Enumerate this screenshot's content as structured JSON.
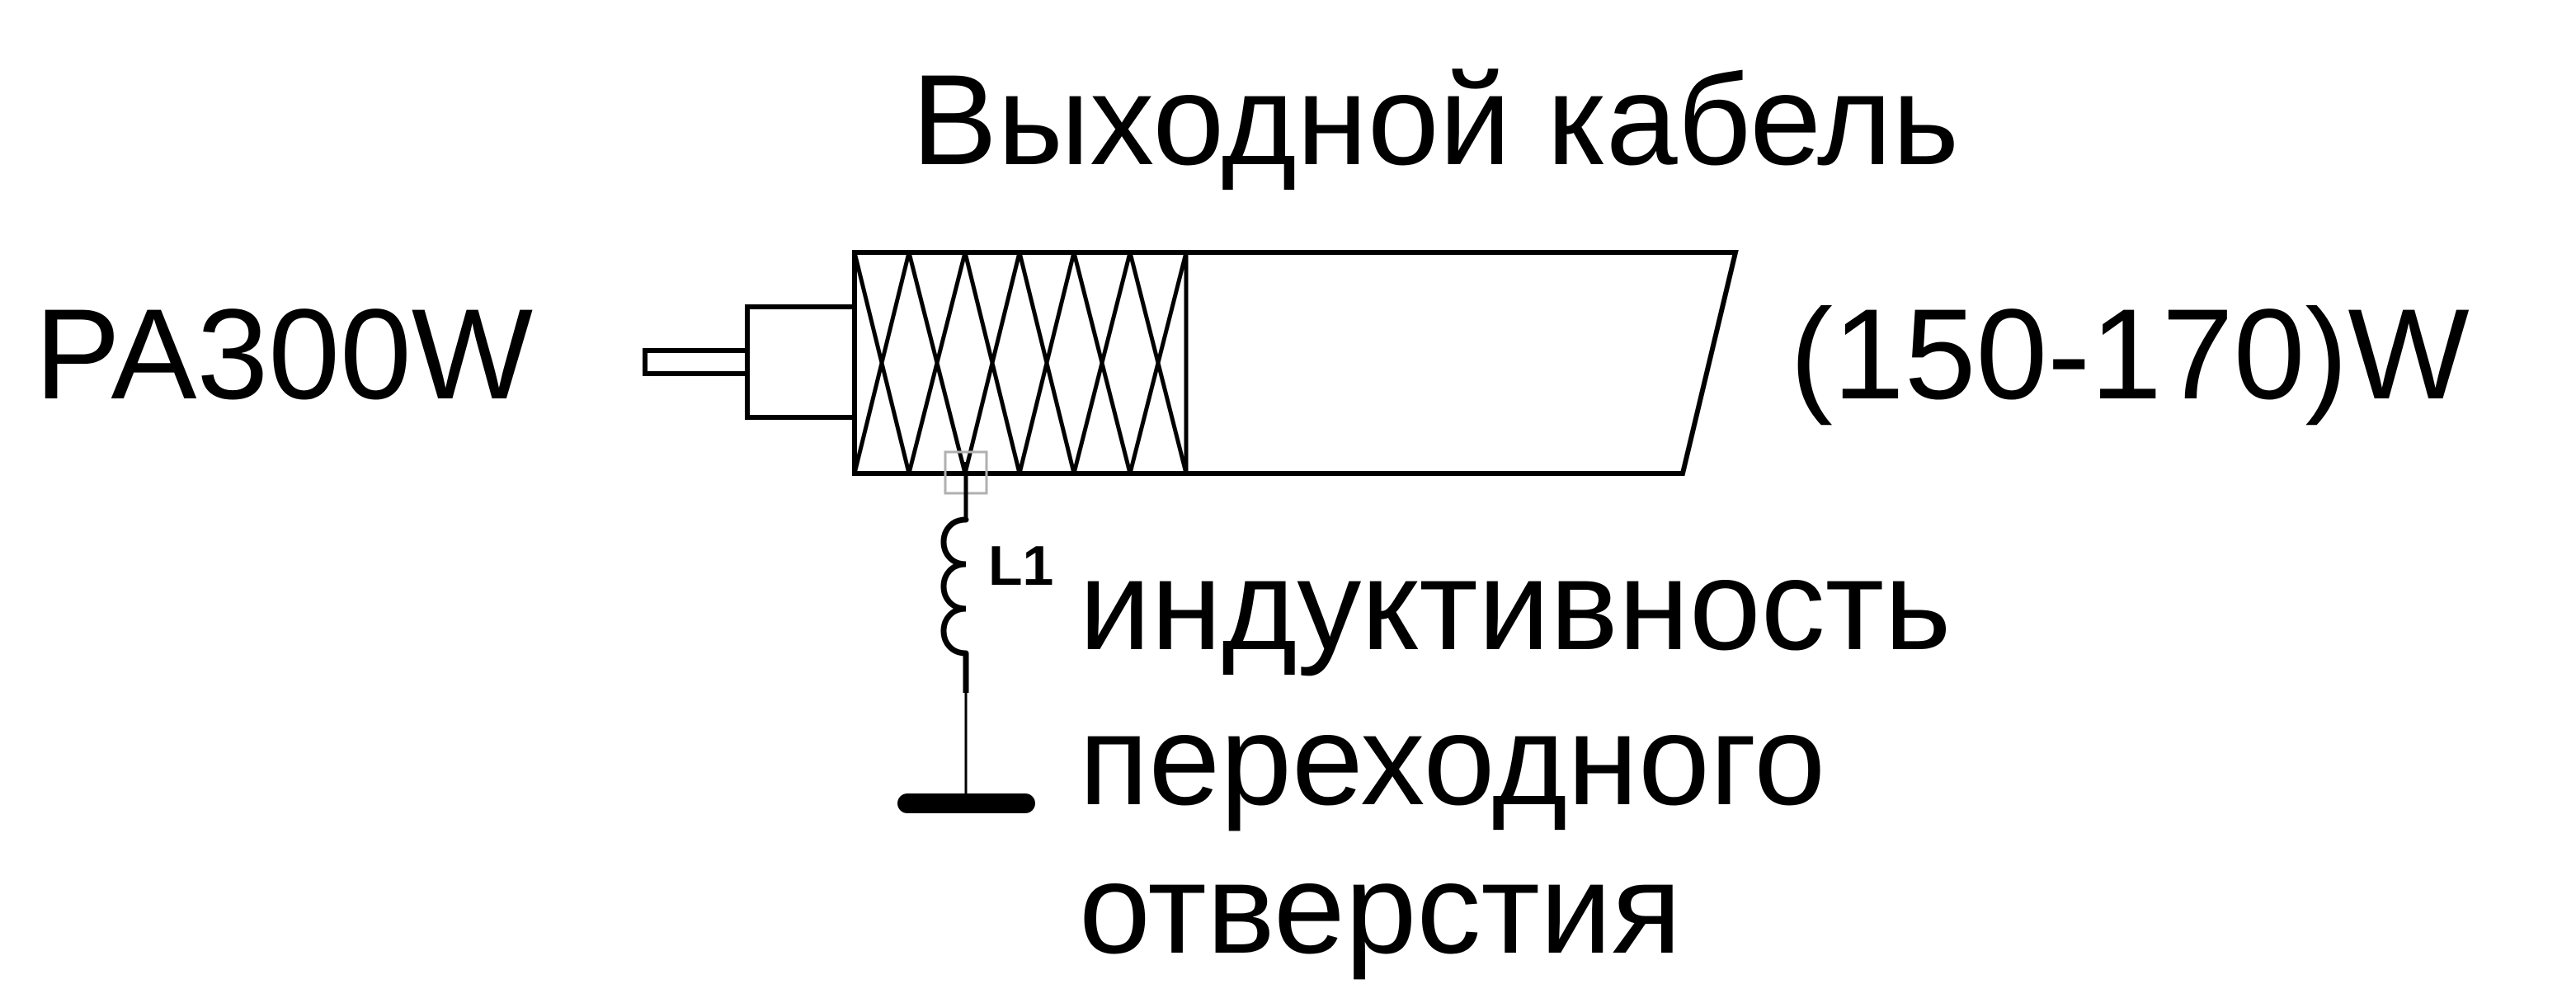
{
  "diagram": {
    "title": "Выходной кабель",
    "source_label": "PA300W",
    "output_label": "(150-170)W",
    "inductor_ref": "L1",
    "inductor_description": [
      "индуктивность",
      "переходного",
      "отверстия"
    ],
    "components": [
      "center-conductor-pin",
      "connector-body",
      "coax-cable-body",
      "braided-shield",
      "inductor-coil",
      "ground-symbol"
    ],
    "colors": {
      "stroke": "#000000",
      "background": "#ffffff",
      "junction_box": "#b0b0b0"
    }
  }
}
